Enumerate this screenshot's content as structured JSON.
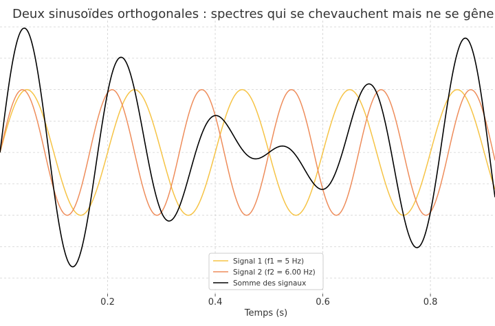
{
  "chart_data": {
    "type": "line",
    "title": "Deux sinusoïdes orthogonales : spectres qui se chevauchent mais ne se gênent pas",
    "xlabel": "Temps (s)",
    "ylabel": "",
    "xlim": [
      0,
      0.92
    ],
    "ylim": [
      -2.25,
      2.1
    ],
    "x_ticks": [
      0.2,
      0.4,
      0.6,
      0.8
    ],
    "x_tick_labels": [
      "0.2",
      "0.4",
      "0.6",
      "0.8"
    ],
    "grid": true,
    "legend_position": "bottom-center",
    "series": [
      {
        "name": "Signal 1 (f1 = 5 Hz)",
        "frequency_hz": 5,
        "amplitude": 1,
        "color": "#f6c344"
      },
      {
        "name": "Signal 2 (f2 = 6.00 Hz)",
        "frequency_hz": 6,
        "amplitude": 1,
        "color": "#ee8c5a"
      },
      {
        "name": "Somme des signaux",
        "color": "#000000"
      }
    ]
  }
}
